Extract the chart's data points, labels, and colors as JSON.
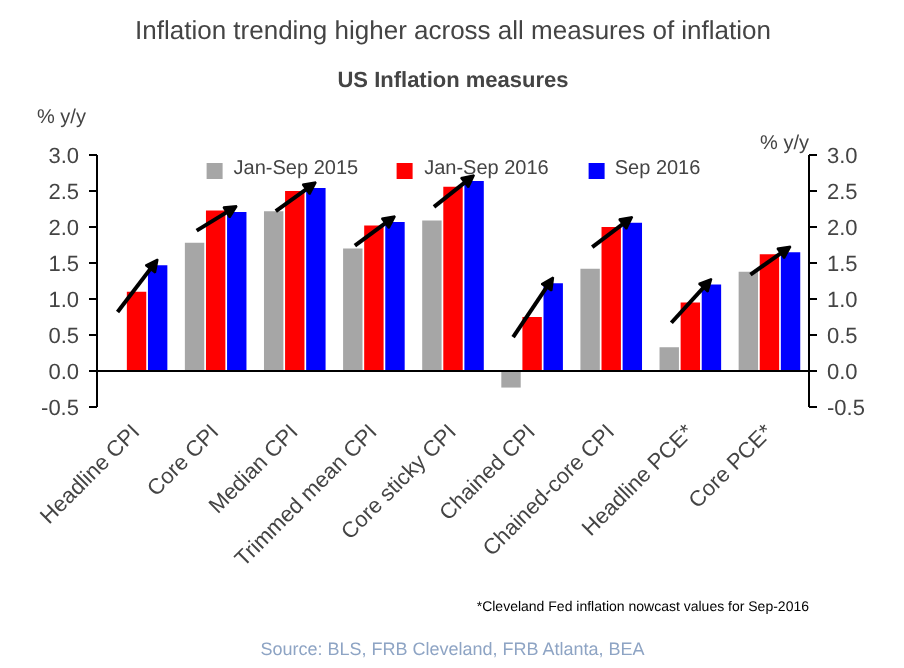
{
  "chart_data": {
    "type": "bar",
    "title": "Inflation trending higher across all measures of inflation",
    "subtitle": "US Inflation measures",
    "ylabel": "% y/y",
    "y2label": "% y/y",
    "categories": [
      "Headline CPI",
      "Core CPI",
      "Median CPI",
      "Trimmed mean CPI",
      "Core sticky CPI",
      "Chained CPI",
      "Chained-core CPI",
      "Headline PCE*",
      "Core PCE*"
    ],
    "series": [
      {
        "name": "Jan-Sep 2015",
        "color": "#a6a6a6",
        "values": [
          null,
          1.78,
          2.22,
          1.7,
          2.09,
          -0.23,
          1.42,
          0.33,
          1.38
        ]
      },
      {
        "name": "Jan-Sep 2016",
        "color": "#ff0000",
        "values": [
          1.1,
          2.23,
          2.5,
          2.02,
          2.56,
          0.75,
          2.0,
          0.95,
          1.62
        ]
      },
      {
        "name": "Sep 2016",
        "color": "#0000ff",
        "values": [
          1.47,
          2.21,
          2.54,
          2.07,
          2.64,
          1.22,
          2.06,
          1.2,
          1.65
        ]
      }
    ],
    "ylim": [
      -0.5,
      3.0
    ],
    "yticks": [
      {
        "value": -0.5,
        "label": "-0.5"
      },
      {
        "value": 0,
        "label": "0.0"
      },
      {
        "value": 0.5,
        "label": "0.5"
      },
      {
        "value": 1,
        "label": "1.0"
      },
      {
        "value": 1.5,
        "label": "1.5"
      },
      {
        "value": 2,
        "label": "2.0"
      },
      {
        "value": 2.5,
        "label": "2.5"
      },
      {
        "value": 3,
        "label": "3.0"
      }
    ],
    "y2lim": [
      -0.5,
      3.0
    ],
    "y2ticks": [
      {
        "value": -0.5,
        "label": "-0.5"
      },
      {
        "value": 0,
        "label": "0.0"
      },
      {
        "value": 0.5,
        "label": "0.5"
      },
      {
        "value": 1,
        "label": "1.0"
      },
      {
        "value": 1.5,
        "label": "1.5"
      },
      {
        "value": 2,
        "label": "2.0"
      },
      {
        "value": 2.5,
        "label": "2.5"
      },
      {
        "value": 3,
        "label": "3.0"
      }
    ],
    "grid": false,
    "legend": "top",
    "annotations": [
      "*Cleveland Fed inflation nowcast values for Sep-2016",
      "Source: BLS, FRB Cleveland, FRB Atlanta, BEA"
    ]
  }
}
